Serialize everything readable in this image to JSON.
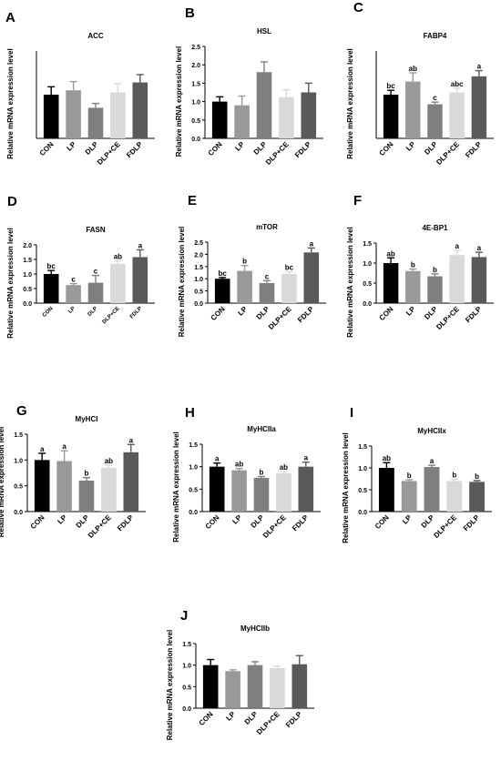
{
  "style": {
    "bar_colors": [
      "#000000",
      "#999999",
      "#7f7f7f",
      "#d9d9d9",
      "#5a5a5a"
    ],
    "axis_color": "#000000"
  },
  "chart_data": [
    {
      "panel": "A",
      "type": "bar",
      "title": "ACC",
      "ylabel": "Relative mRNA expression level",
      "categories": [
        "CON",
        "LP",
        "DLP",
        "DLP+CE",
        "FDLP"
      ],
      "values": [
        1.0,
        1.1,
        0.7,
        1.05,
        1.28
      ],
      "errors": [
        0.18,
        0.2,
        0.1,
        0.2,
        0.18
      ],
      "letters": [
        "",
        "",
        "",
        "",
        ""
      ],
      "ylim": [
        0,
        2.0
      ],
      "ticks": [],
      "grid": false
    },
    {
      "panel": "B",
      "type": "bar",
      "title": "HSL",
      "ylabel": "Relative mRNA expression level",
      "categories": [
        "CON",
        "LP",
        "DLP",
        "DLP+CE",
        "FDLP"
      ],
      "values": [
        1.0,
        0.9,
        1.8,
        1.12,
        1.25
      ],
      "errors": [
        0.13,
        0.25,
        0.28,
        0.2,
        0.25
      ],
      "letters": [
        "",
        "",
        "",
        "",
        ""
      ],
      "ylim": [
        0,
        2.5
      ],
      "ticks": [
        "0.0",
        "0.5",
        "1.0",
        "1.5",
        "2.0",
        "2.5"
      ],
      "grid": false
    },
    {
      "panel": "C",
      "type": "bar",
      "title": "FABP4",
      "ylabel": "Relative mRNA expression level",
      "categories": [
        "CON",
        "LP",
        "DLP",
        "DLP+CE",
        "FDLP"
      ],
      "values": [
        1.0,
        1.3,
        0.78,
        1.05,
        1.42
      ],
      "errors": [
        0.1,
        0.2,
        0.05,
        0.1,
        0.13
      ],
      "letters": [
        "bc",
        "ab",
        "c",
        "abc",
        "a"
      ],
      "ylim": [
        0,
        2.0
      ],
      "ticks": [],
      "grid": false
    },
    {
      "panel": "D",
      "type": "bar",
      "title": "FASN",
      "ylabel": "Relative mRNA expression level",
      "categories": [
        "CON",
        "LP",
        "DLP",
        "DLP+CE",
        "FDLP"
      ],
      "values": [
        1.0,
        0.62,
        0.7,
        1.35,
        1.58
      ],
      "errors": [
        0.12,
        0.05,
        0.25,
        0.1,
        0.25
      ],
      "letters": [
        "bc",
        "c",
        "c",
        "ab",
        "a"
      ],
      "ylim": [
        0,
        2.0
      ],
      "ticks": [
        "0.0",
        "0.5",
        "1.0",
        "1.5",
        "2.0"
      ],
      "grid": false
    },
    {
      "panel": "E",
      "type": "bar",
      "title": "mTOR",
      "ylabel": "Relative mRNA expression level",
      "categories": [
        "CON",
        "LP",
        "DLP",
        "DLP+CE",
        "FDLP"
      ],
      "values": [
        1.0,
        1.32,
        0.82,
        1.2,
        2.08
      ],
      "errors": [
        0.05,
        0.22,
        0.1,
        0.08,
        0.18
      ],
      "letters": [
        "bc",
        "b",
        "c",
        "bc",
        "a"
      ],
      "ylim": [
        0,
        2.5
      ],
      "ticks": [
        "0.0",
        "0.5",
        "1.0",
        "1.5",
        "2.0",
        "2.5"
      ],
      "grid": false
    },
    {
      "panel": "F",
      "type": "bar",
      "title": "4E-BP1",
      "ylabel": "Relative mRNA expression level",
      "categories": [
        "CON",
        "LP",
        "DLP",
        "DLP+CE",
        "FDLP"
      ],
      "values": [
        1.0,
        0.8,
        0.67,
        1.2,
        1.15
      ],
      "errors": [
        0.13,
        0.05,
        0.06,
        0.12,
        0.12
      ],
      "letters": [
        "ab",
        "b",
        "b",
        "a",
        "a"
      ],
      "ylim": [
        0,
        1.5
      ],
      "ticks": [
        "0.0",
        "0.5",
        "1.0",
        "1.5"
      ],
      "grid": false
    },
    {
      "panel": "G",
      "type": "bar",
      "title": "MyHCI",
      "ylabel": "Relative mRNA expression level",
      "categories": [
        "CON",
        "LP",
        "DLP",
        "DLP+CE",
        "FDLP"
      ],
      "values": [
        1.0,
        0.98,
        0.6,
        0.85,
        1.15
      ],
      "errors": [
        0.13,
        0.2,
        0.06,
        0.05,
        0.15
      ],
      "letters": [
        "a",
        "a",
        "b",
        "ab",
        "a"
      ],
      "ylim": [
        0,
        1.5
      ],
      "ticks": [
        "0.0",
        "0.5",
        "1.0",
        "1.5"
      ],
      "grid": false
    },
    {
      "panel": "H",
      "type": "bar",
      "title": "MyHCIIa",
      "ylabel": "Relative mRNA expression level",
      "categories": [
        "CON",
        "LP",
        "DLP",
        "DLP+CE",
        "FDLP"
      ],
      "values": [
        1.0,
        0.92,
        0.75,
        0.85,
        1.0
      ],
      "errors": [
        0.08,
        0.04,
        0.03,
        0.04,
        0.1
      ],
      "letters": [
        "a",
        "ab",
        "b",
        "ab",
        "a"
      ],
      "ylim": [
        0,
        1.5
      ],
      "ticks": [
        "0.0",
        "0.5",
        "1.0",
        "1.5"
      ],
      "grid": false
    },
    {
      "panel": "I",
      "type": "bar",
      "title": "MyHCIIx",
      "ylabel": "Relative mRNA expression level",
      "categories": [
        "CON",
        "LP",
        "DLP",
        "DLP+CE",
        "FDLP"
      ],
      "values": [
        1.0,
        0.7,
        1.02,
        0.7,
        0.68
      ],
      "errors": [
        0.12,
        0.03,
        0.04,
        0.04,
        0.03
      ],
      "letters": [
        "ab",
        "b",
        "a",
        "b",
        "b"
      ],
      "ylim": [
        0,
        1.5
      ],
      "ticks": [
        "0.0",
        "0.5",
        "1.0",
        "1.5"
      ],
      "grid": false
    },
    {
      "panel": "J",
      "type": "bar",
      "title": "MyHCIIb",
      "ylabel": "Relative mRNA expression level",
      "categories": [
        "CON",
        "LP",
        "DLP",
        "DLP+CE",
        "FDLP"
      ],
      "values": [
        1.0,
        0.86,
        1.0,
        0.93,
        1.02
      ],
      "errors": [
        0.13,
        0.03,
        0.08,
        0.05,
        0.2
      ],
      "letters": [
        "",
        "",
        "",
        "",
        ""
      ],
      "ylim": [
        0,
        1.5
      ],
      "ticks": [
        "0.0",
        "0.5",
        "1.0",
        "1.5"
      ],
      "grid": false
    }
  ]
}
